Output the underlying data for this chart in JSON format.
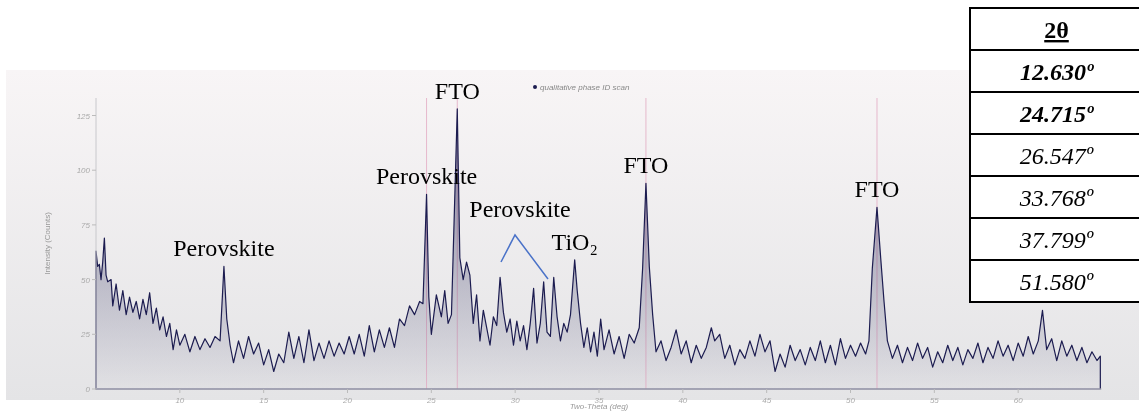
{
  "chart_data": {
    "type": "area",
    "xlabel": "Two-Theta (deg)",
    "ylabel": "Intensity (Counts)",
    "xlim": [
      5,
      65
    ],
    "ylim": [
      0,
      133
    ],
    "xticks": [
      10,
      15,
      20,
      25,
      30,
      35,
      40,
      45,
      50,
      55,
      60
    ],
    "yticks": [
      0,
      25,
      50,
      75,
      100,
      125
    ],
    "grid": false,
    "legend": "top",
    "marker": "none",
    "series": [
      {
        "name": "qualitative phase ID scan",
        "color": "#1c1c50",
        "x": [
          5.0,
          5.1,
          5.2,
          5.3,
          5.4,
          5.5,
          5.6,
          5.7,
          5.9,
          6.0,
          6.2,
          6.4,
          6.6,
          6.8,
          7.0,
          7.2,
          7.4,
          7.6,
          7.8,
          8.0,
          8.2,
          8.4,
          8.6,
          8.8,
          9.0,
          9.2,
          9.4,
          9.6,
          9.8,
          10.0,
          10.3,
          10.6,
          10.9,
          11.2,
          11.5,
          11.8,
          12.1,
          12.4,
          12.63,
          12.8,
          13.0,
          13.2,
          13.5,
          13.8,
          14.1,
          14.4,
          14.7,
          15.0,
          15.3,
          15.6,
          15.9,
          16.2,
          16.5,
          16.8,
          17.1,
          17.4,
          17.7,
          18.0,
          18.3,
          18.6,
          18.9,
          19.2,
          19.5,
          19.8,
          20.1,
          20.4,
          20.7,
          21.0,
          21.3,
          21.6,
          21.9,
          22.2,
          22.5,
          22.8,
          23.1,
          23.4,
          23.7,
          24.0,
          24.3,
          24.5,
          24.715,
          24.85,
          25.0,
          25.3,
          25.6,
          25.8,
          26.0,
          26.2,
          26.547,
          26.7,
          26.9,
          27.1,
          27.3,
          27.5,
          27.7,
          27.9,
          28.1,
          28.3,
          28.5,
          28.7,
          28.9,
          29.1,
          29.3,
          29.5,
          29.7,
          29.9,
          30.1,
          30.3,
          30.5,
          30.7,
          30.9,
          31.1,
          31.3,
          31.5,
          31.7,
          31.9,
          32.1,
          32.3,
          32.5,
          32.7,
          32.9,
          33.1,
          33.3,
          33.55,
          33.7,
          33.9,
          34.1,
          34.3,
          34.5,
          34.7,
          34.9,
          35.1,
          35.3,
          35.6,
          35.9,
          36.2,
          36.5,
          36.8,
          37.1,
          37.4,
          37.6,
          37.8,
          38.0,
          38.2,
          38.4,
          38.7,
          39.0,
          39.3,
          39.6,
          39.9,
          40.2,
          40.5,
          40.8,
          41.1,
          41.4,
          41.7,
          41.9,
          42.2,
          42.5,
          42.8,
          43.1,
          43.4,
          43.7,
          44.0,
          44.3,
          44.6,
          44.9,
          45.2,
          45.5,
          45.8,
          46.1,
          46.4,
          46.7,
          47.0,
          47.3,
          47.6,
          47.9,
          48.2,
          48.5,
          48.8,
          49.1,
          49.4,
          49.7,
          50.0,
          50.3,
          50.6,
          50.9,
          51.1,
          51.3,
          51.58,
          51.8,
          52.0,
          52.2,
          52.5,
          52.8,
          53.1,
          53.4,
          53.7,
          54.0,
          54.3,
          54.6,
          54.9,
          55.2,
          55.5,
          55.8,
          56.1,
          56.4,
          56.7,
          57.0,
          57.3,
          57.6,
          57.9,
          58.2,
          58.5,
          58.8,
          59.1,
          59.4,
          59.7,
          60.0,
          60.3,
          60.6,
          60.9,
          61.2,
          61.45,
          61.7,
          62.0,
          62.3,
          62.6,
          62.9,
          63.2,
          63.5,
          63.8,
          64.1,
          64.4,
          64.7,
          64.9
        ],
        "values": [
          63,
          56,
          57,
          50,
          58,
          69,
          52,
          49,
          50,
          38,
          48,
          36,
          45,
          34,
          42,
          35,
          40,
          32,
          41,
          34,
          44,
          30,
          37,
          27,
          33,
          24,
          30,
          18,
          27,
          20,
          25,
          17,
          24,
          18,
          23,
          19,
          24,
          22,
          56,
          32,
          20,
          12,
          22,
          14,
          24,
          16,
          21,
          11,
          18,
          8,
          16,
          12,
          26,
          14,
          24,
          12,
          27,
          13,
          21,
          14,
          22,
          15,
          21,
          16,
          24,
          16,
          25,
          15,
          29,
          17,
          27,
          19,
          28,
          19,
          32,
          29,
          38,
          34,
          40,
          39,
          89,
          42,
          25,
          43,
          33,
          45,
          30,
          34,
          128,
          60,
          50,
          58,
          52,
          30,
          43,
          22,
          36,
          28,
          20,
          33,
          29,
          51,
          35,
          26,
          32,
          20,
          31,
          22,
          29,
          18,
          30,
          46,
          21,
          30,
          49,
          26,
          24,
          51,
          33,
          22,
          30,
          26,
          34,
          59,
          45,
          30,
          19,
          28,
          17,
          26,
          15,
          32,
          18,
          27,
          16,
          24,
          14,
          25,
          21,
          28,
          55,
          94,
          56,
          34,
          17,
          22,
          13,
          19,
          27,
          16,
          22,
          12,
          20,
          14,
          19,
          28,
          22,
          25,
          14,
          20,
          11,
          18,
          14,
          22,
          15,
          25,
          17,
          22,
          8,
          16,
          10,
          20,
          13,
          18,
          11,
          19,
          13,
          22,
          12,
          20,
          11,
          23,
          14,
          20,
          15,
          21,
          16,
          22,
          55,
          83,
          60,
          40,
          22,
          14,
          20,
          12,
          19,
          13,
          21,
          14,
          19,
          10,
          17,
          12,
          20,
          13,
          19,
          11,
          18,
          14,
          21,
          12,
          19,
          14,
          22,
          15,
          20,
          13,
          21,
          15,
          24,
          16,
          22,
          36,
          18,
          23,
          13,
          22,
          15,
          20,
          13,
          19,
          12,
          17,
          13,
          15
        ]
      }
    ],
    "ref_lines": [
      {
        "axis": "x",
        "value": 24.715,
        "label": null,
        "color": "#e6b8cc"
      },
      {
        "axis": "x",
        "value": 26.547,
        "label": null,
        "color": "#e6b8cc"
      },
      {
        "axis": "x",
        "value": 37.799,
        "label": null,
        "color": "#e6b8cc"
      },
      {
        "axis": "x",
        "value": 51.58,
        "label": null,
        "color": "#e6b8cc"
      }
    ],
    "annotations": [
      {
        "text": "Perovskite",
        "x": 12.63,
        "y": 56
      },
      {
        "text": "Perovskite",
        "x": 24.715,
        "y": 89
      },
      {
        "text": "FTO",
        "x": 26.547,
        "y": 128
      },
      {
        "text": "TiO₂",
        "x": 33.55,
        "y": 59
      },
      {
        "text": "FTO",
        "x": 37.8,
        "y": 94
      },
      {
        "text": "FTO",
        "x": 51.58,
        "y": 83
      },
      "Perovskite",
      "2θ",
      "12.630º",
      "24.715º",
      "26.547º",
      "33.768º",
      "37.799º",
      "51.580º"
    ]
  }
}
